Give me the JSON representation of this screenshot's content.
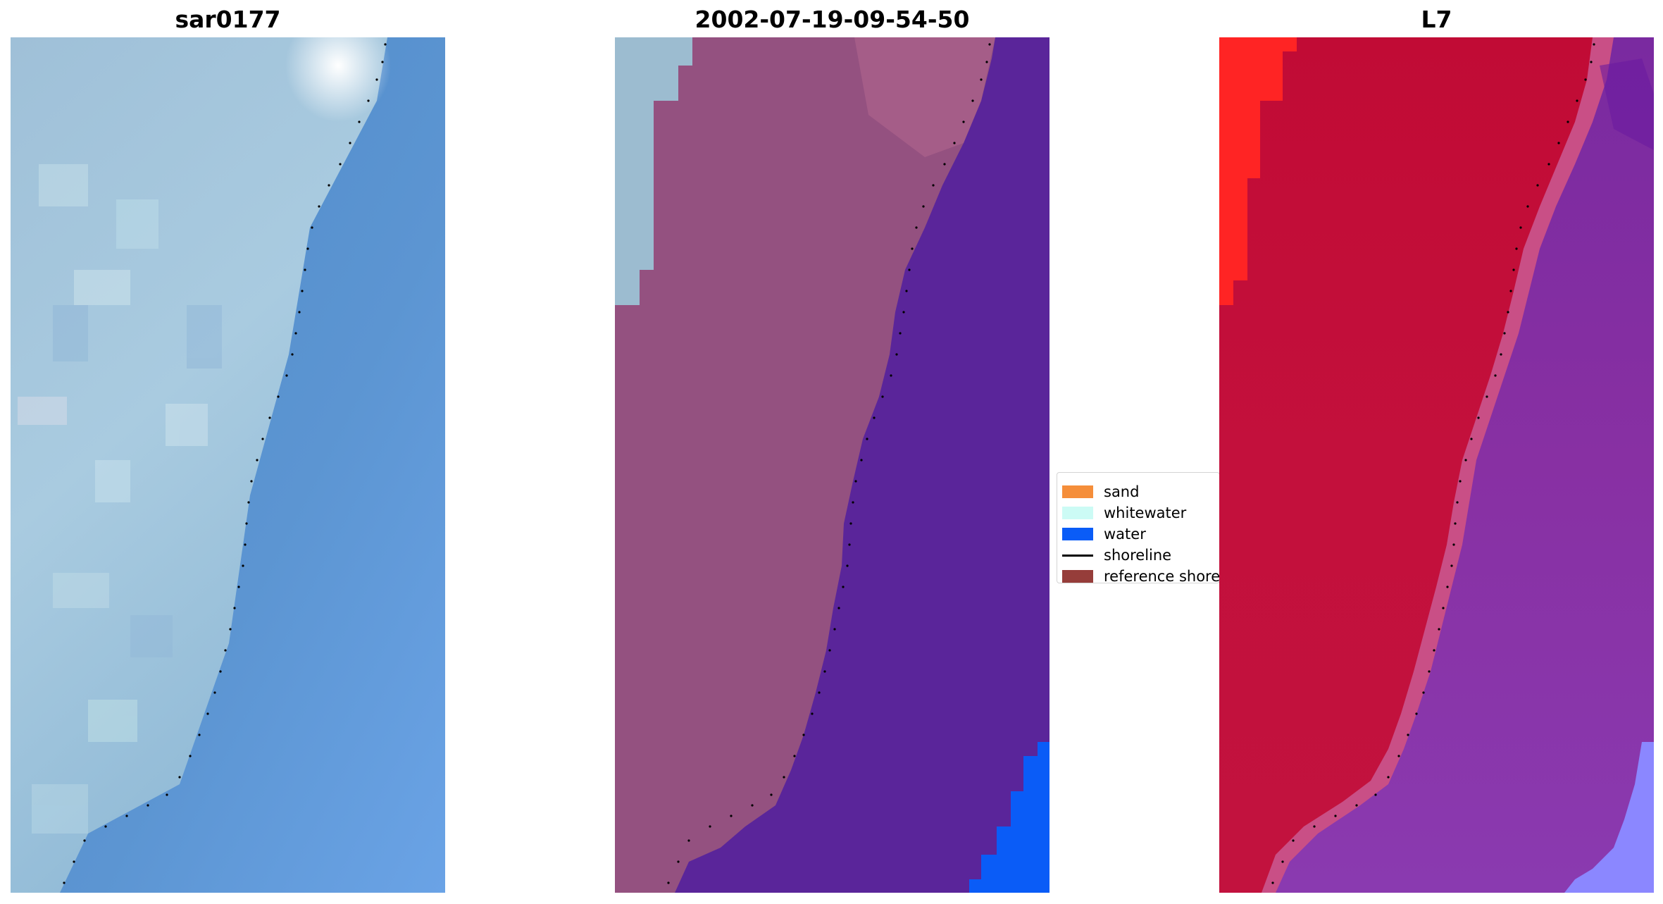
{
  "panels": [
    {
      "title": "sar0177",
      "image": "rgb-satellite-image"
    },
    {
      "title": "2002-07-19-09-54-50",
      "image": "classified-image"
    },
    {
      "title": "L7",
      "image": "false-color-image"
    }
  ],
  "legend": {
    "items": [
      {
        "label": "sand",
        "color": "#f58e3a",
        "kind": "patch"
      },
      {
        "label": "whitewater",
        "color": "#ccfbf5",
        "kind": "patch"
      },
      {
        "label": "water",
        "color": "#0a5cf7",
        "kind": "patch"
      },
      {
        "label": "shoreline",
        "color": "#000000",
        "kind": "line"
      },
      {
        "label": "reference shoreline",
        "color": "#963d3a",
        "kind": "patch"
      }
    ]
  },
  "colors": {
    "rgb_land": "#a6c7dc",
    "rgb_water": "#5c95d2",
    "rgb_glare": "#ffffff",
    "class_land": "#945180",
    "class_water": "#5a259a",
    "class_whitewater": "#9cbcd0",
    "class_water_patch": "#0a5cf7",
    "fc_land": "#c11039",
    "fc_land_bright": "#ff2424",
    "fc_water": "#8830a3",
    "fc_water_light": "#8b87ff",
    "shoreline_dots": "#000000"
  }
}
